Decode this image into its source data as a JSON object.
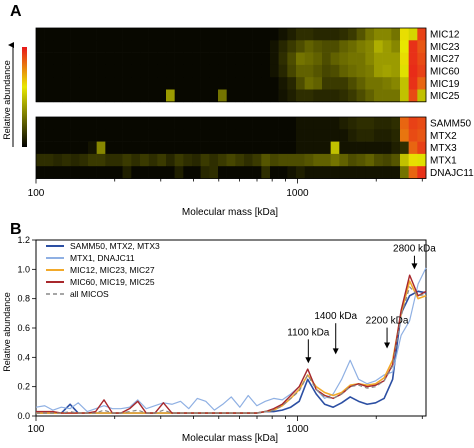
{
  "panel_labels": [
    "A",
    "B"
  ],
  "heatmap_axis": {
    "xlabel": "Molecular mass [kDa]",
    "colorbar_label": "Relative abundance",
    "ticks": [
      "100",
      "1000"
    ]
  },
  "lineplot_axis": {
    "xlabel": "Molecular mass [kDa]",
    "ylabel": "Relative abundance",
    "x_ticks": [
      "100",
      "1000"
    ],
    "y_ticks": [
      "0.0",
      "0.2",
      "0.4",
      "0.6",
      "0.8",
      "1.0",
      "1.2"
    ]
  },
  "colors": {
    "heat_low": "#000000",
    "heat_mid": "#e8e800",
    "heat_high": "#e8171b",
    "series": [
      "#2c4fa3",
      "#8fb0e3",
      "#f2a92a",
      "#a8282c",
      "#888888"
    ]
  },
  "chart_data": [
    {
      "type": "heatmap",
      "x_scale": "log",
      "xlim": [
        100,
        3100
      ],
      "groups": [
        {
          "rows": [
            "MIC12",
            "MIC23",
            "MIC27",
            "MIC60",
            "MIC19",
            "MIC25"
          ],
          "values": [
            [
              0.02,
              0.02,
              0.02,
              0.02,
              0.02,
              0.02,
              0.02,
              0.02,
              0.02,
              0.02,
              0.02,
              0.02,
              0.02,
              0.02,
              0.02,
              0.02,
              0.02,
              0.02,
              0.02,
              0.02,
              0.02,
              0.02,
              0.02,
              0.02,
              0.02,
              0.02,
              0.02,
              0.02,
              0.05,
              0.08,
              0.12,
              0.12,
              0.1,
              0.1,
              0.1,
              0.12,
              0.15,
              0.22,
              0.3,
              0.35,
              0.35,
              0.3,
              0.62,
              0.55,
              0.92
            ],
            [
              0.02,
              0.02,
              0.02,
              0.02,
              0.02,
              0.02,
              0.02,
              0.02,
              0.02,
              0.02,
              0.02,
              0.02,
              0.02,
              0.02,
              0.02,
              0.02,
              0.02,
              0.02,
              0.02,
              0.02,
              0.02,
              0.02,
              0.02,
              0.02,
              0.02,
              0.02,
              0.02,
              0.05,
              0.1,
              0.15,
              0.2,
              0.25,
              0.22,
              0.2,
              0.2,
              0.25,
              0.28,
              0.32,
              0.35,
              0.45,
              0.4,
              0.35,
              0.6,
              0.95,
              0.88
            ],
            [
              0.02,
              0.02,
              0.02,
              0.02,
              0.02,
              0.02,
              0.02,
              0.02,
              0.02,
              0.02,
              0.02,
              0.02,
              0.02,
              0.02,
              0.02,
              0.02,
              0.02,
              0.02,
              0.02,
              0.02,
              0.02,
              0.02,
              0.02,
              0.02,
              0.02,
              0.02,
              0.02,
              0.05,
              0.12,
              0.2,
              0.3,
              0.28,
              0.25,
              0.2,
              0.25,
              0.28,
              0.3,
              0.3,
              0.35,
              0.4,
              0.4,
              0.4,
              0.62,
              0.95,
              0.9
            ],
            [
              0.02,
              0.02,
              0.02,
              0.02,
              0.02,
              0.02,
              0.02,
              0.02,
              0.02,
              0.02,
              0.02,
              0.02,
              0.02,
              0.02,
              0.02,
              0.02,
              0.02,
              0.02,
              0.02,
              0.02,
              0.02,
              0.02,
              0.02,
              0.02,
              0.02,
              0.02,
              0.02,
              0.05,
              0.1,
              0.18,
              0.25,
              0.25,
              0.22,
              0.18,
              0.2,
              0.25,
              0.28,
              0.3,
              0.32,
              0.4,
              0.42,
              0.4,
              0.58,
              0.96,
              0.92
            ],
            [
              0.02,
              0.02,
              0.02,
              0.02,
              0.02,
              0.02,
              0.02,
              0.02,
              0.02,
              0.02,
              0.02,
              0.02,
              0.02,
              0.02,
              0.02,
              0.02,
              0.02,
              0.02,
              0.02,
              0.02,
              0.02,
              0.02,
              0.02,
              0.02,
              0.02,
              0.02,
              0.02,
              0.02,
              0.06,
              0.1,
              0.2,
              0.28,
              0.25,
              0.15,
              0.15,
              0.15,
              0.2,
              0.25,
              0.3,
              0.3,
              0.32,
              0.35,
              0.5,
              0.95,
              0.85
            ],
            [
              0.02,
              0.02,
              0.02,
              0.02,
              0.02,
              0.02,
              0.02,
              0.02,
              0.02,
              0.02,
              0.02,
              0.02,
              0.02,
              0.02,
              0.02,
              0.4,
              0.02,
              0.02,
              0.02,
              0.02,
              0.02,
              0.3,
              0.02,
              0.02,
              0.02,
              0.02,
              0.02,
              0.02,
              0.05,
              0.08,
              0.12,
              0.12,
              0.1,
              0.1,
              0.1,
              0.12,
              0.15,
              0.2,
              0.25,
              0.3,
              0.3,
              0.3,
              0.5,
              0.9,
              0.5
            ]
          ]
        },
        {
          "rows": [
            "SAMM50",
            "MTX2",
            "MTX3",
            "MTX1",
            "DNAJC11"
          ],
          "values": [
            [
              0.02,
              0.02,
              0.02,
              0.02,
              0.02,
              0.02,
              0.02,
              0.02,
              0.02,
              0.02,
              0.02,
              0.02,
              0.02,
              0.02,
              0.02,
              0.02,
              0.02,
              0.02,
              0.02,
              0.02,
              0.02,
              0.02,
              0.02,
              0.02,
              0.02,
              0.02,
              0.02,
              0.02,
              0.02,
              0.02,
              0.05,
              0.05,
              0.05,
              0.05,
              0.05,
              0.08,
              0.1,
              0.12,
              0.12,
              0.1,
              0.1,
              0.12,
              0.85,
              0.92,
              0.9
            ],
            [
              0.02,
              0.02,
              0.02,
              0.02,
              0.02,
              0.02,
              0.02,
              0.02,
              0.02,
              0.02,
              0.02,
              0.02,
              0.02,
              0.02,
              0.02,
              0.02,
              0.02,
              0.02,
              0.02,
              0.02,
              0.02,
              0.02,
              0.02,
              0.02,
              0.02,
              0.02,
              0.02,
              0.02,
              0.02,
              0.02,
              0.05,
              0.05,
              0.05,
              0.05,
              0.05,
              0.05,
              0.08,
              0.1,
              0.1,
              0.08,
              0.08,
              0.1,
              0.82,
              0.9,
              0.88
            ],
            [
              0.02,
              0.02,
              0.02,
              0.02,
              0.02,
              0.02,
              0.05,
              0.35,
              0.02,
              0.02,
              0.02,
              0.02,
              0.02,
              0.02,
              0.02,
              0.02,
              0.02,
              0.02,
              0.02,
              0.02,
              0.02,
              0.02,
              0.02,
              0.02,
              0.02,
              0.02,
              0.02,
              0.02,
              0.02,
              0.02,
              0.05,
              0.05,
              0.05,
              0.05,
              0.5,
              0.05,
              0.05,
              0.05,
              0.05,
              0.05,
              0.05,
              0.08,
              0.12,
              0.85,
              0.92
            ],
            [
              0.12,
              0.12,
              0.1,
              0.12,
              0.1,
              0.12,
              0.15,
              0.15,
              0.12,
              0.12,
              0.15,
              0.12,
              0.15,
              0.12,
              0.15,
              0.1,
              0.15,
              0.12,
              0.1,
              0.15,
              0.12,
              0.15,
              0.18,
              0.15,
              0.12,
              0.15,
              0.22,
              0.18,
              0.2,
              0.2,
              0.2,
              0.22,
              0.25,
              0.25,
              0.3,
              0.25,
              0.2,
              0.22,
              0.25,
              0.2,
              0.18,
              0.22,
              0.5,
              0.62,
              0.58
            ],
            [
              0.02,
              0.02,
              0.02,
              0.02,
              0.02,
              0.02,
              0.02,
              0.02,
              0.02,
              0.02,
              0.08,
              0.02,
              0.02,
              0.02,
              0.02,
              0.02,
              0.08,
              0.02,
              0.02,
              0.1,
              0.12,
              0.02,
              0.02,
              0.02,
              0.02,
              0.02,
              0.12,
              0.02,
              0.02,
              0.05,
              0.08,
              0.05,
              0.05,
              0.05,
              0.05,
              0.05,
              0.05,
              0.05,
              0.05,
              0.05,
              0.05,
              0.05,
              0.3,
              0.85,
              0.95
            ]
          ]
        }
      ]
    },
    {
      "type": "line",
      "x_scale": "log",
      "xlim": [
        100,
        3100
      ],
      "ylim": [
        0,
        1.2
      ],
      "x": [
        100,
        108,
        116,
        125,
        135,
        145,
        157,
        169,
        182,
        196,
        211,
        228,
        245,
        264,
        285,
        307,
        331,
        357,
        384,
        414,
        446,
        481,
        518,
        558,
        602,
        648,
        699,
        753,
        811,
        874,
        942,
        1015,
        1094,
        1179,
        1270,
        1369,
        1475,
        1590,
        1713,
        1846,
        1990,
        2144,
        2311,
        2490,
        2684,
        2892,
        3100
      ],
      "series": [
        {
          "name": "SAMM50, MTX2, MTX3",
          "values": [
            0.02,
            0.02,
            0.02,
            0.02,
            0.08,
            0.02,
            0.02,
            0.02,
            0.02,
            0.02,
            0.02,
            0.02,
            0.02,
            0.02,
            0.02,
            0.02,
            0.02,
            0.02,
            0.02,
            0.02,
            0.02,
            0.02,
            0.02,
            0.02,
            0.02,
            0.02,
            0.02,
            0.03,
            0.03,
            0.04,
            0.06,
            0.1,
            0.25,
            0.15,
            0.08,
            0.06,
            0.09,
            0.13,
            0.1,
            0.08,
            0.09,
            0.12,
            0.25,
            0.7,
            0.82,
            0.85,
            0.84
          ]
        },
        {
          "name": "MTX1, DNAJC11",
          "values": [
            0.06,
            0.07,
            0.04,
            0.06,
            0.05,
            0.09,
            0.03,
            0.05,
            0.07,
            0.05,
            0.05,
            0.06,
            0.11,
            0.05,
            0.07,
            0.09,
            0.08,
            0.1,
            0.05,
            0.12,
            0.1,
            0.04,
            0.08,
            0.13,
            0.06,
            0.14,
            0.07,
            0.1,
            0.12,
            0.11,
            0.15,
            0.2,
            0.32,
            0.18,
            0.12,
            0.15,
            0.25,
            0.38,
            0.25,
            0.22,
            0.24,
            0.28,
            0.3,
            0.55,
            0.65,
            0.9,
            1.01
          ]
        },
        {
          "name": "MIC12, MIC23, MIC27",
          "values": [
            0.02,
            0.02,
            0.02,
            0.02,
            0.02,
            0.02,
            0.02,
            0.02,
            0.02,
            0.02,
            0.02,
            0.02,
            0.02,
            0.02,
            0.02,
            0.02,
            0.02,
            0.02,
            0.02,
            0.02,
            0.02,
            0.02,
            0.02,
            0.02,
            0.02,
            0.02,
            0.02,
            0.03,
            0.04,
            0.07,
            0.12,
            0.18,
            0.28,
            0.2,
            0.16,
            0.14,
            0.16,
            0.21,
            0.22,
            0.21,
            0.22,
            0.26,
            0.38,
            0.7,
            0.92,
            0.8,
            0.82
          ]
        },
        {
          "name": "MIC60, MIC19, MIC25",
          "values": [
            0.03,
            0.03,
            0.03,
            0.02,
            0.02,
            0.02,
            0.02,
            0.03,
            0.11,
            0.02,
            0.02,
            0.05,
            0.1,
            0.02,
            0.02,
            0.09,
            0.02,
            0.02,
            0.02,
            0.02,
            0.02,
            0.02,
            0.02,
            0.02,
            0.02,
            0.02,
            0.02,
            0.03,
            0.05,
            0.08,
            0.14,
            0.2,
            0.32,
            0.18,
            0.14,
            0.12,
            0.15,
            0.2,
            0.22,
            0.2,
            0.21,
            0.24,
            0.35,
            0.72,
            0.96,
            0.82,
            0.85
          ]
        },
        {
          "name": "all MICOS",
          "values": [
            0.02,
            0.02,
            0.02,
            0.02,
            0.03,
            0.02,
            0.02,
            0.02,
            0.04,
            0.02,
            0.02,
            0.03,
            0.04,
            0.02,
            0.02,
            0.04,
            0.02,
            0.02,
            0.02,
            0.02,
            0.02,
            0.02,
            0.02,
            0.02,
            0.02,
            0.02,
            0.02,
            0.03,
            0.04,
            0.07,
            0.12,
            0.17,
            0.28,
            0.18,
            0.13,
            0.12,
            0.15,
            0.2,
            0.21,
            0.19,
            0.2,
            0.24,
            0.34,
            0.68,
            0.88,
            0.82,
            0.83
          ]
        }
      ],
      "annotations": [
        {
          "label": "1100 kDa",
          "x": 1100
        },
        {
          "label": "1400 kDa",
          "x": 1400
        },
        {
          "label": "2200 kDa",
          "x": 2200
        },
        {
          "label": "2800 kDa",
          "x": 2800
        }
      ]
    }
  ]
}
